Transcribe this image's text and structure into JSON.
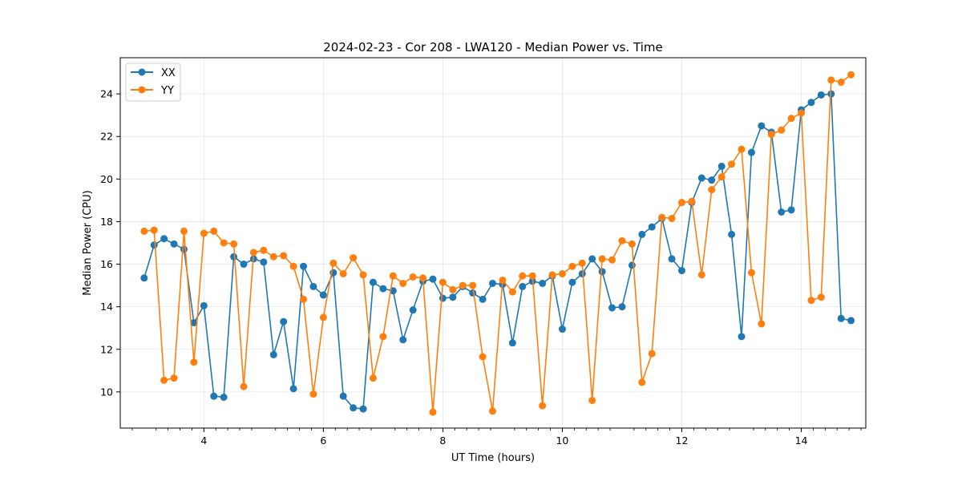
{
  "chart_data": {
    "type": "line",
    "title": "2024-02-23 - Cor 208 - LWA120 - Median Power vs. Time",
    "xlabel": "UT Time (hours)",
    "ylabel": "Median Power (CPU)",
    "xlim": [
      2.6,
      15.08
    ],
    "ylim": [
      8.3,
      25.7
    ],
    "xticks": [
      4,
      6,
      8,
      10,
      12,
      14
    ],
    "xticks_minor": [
      2.8,
      3.2,
      3.4,
      3.6,
      3.8,
      4.2,
      4.4,
      4.6,
      4.8,
      5.2,
      5.4,
      5.6,
      5.8,
      6.2,
      6.4,
      6.6,
      6.8,
      7.2,
      7.4,
      7.6,
      7.8,
      8.2,
      8.4,
      8.6,
      8.8,
      9.2,
      9.4,
      9.6,
      9.8,
      10.2,
      10.4,
      10.6,
      10.8,
      11.2,
      11.4,
      11.6,
      11.8,
      12.2,
      12.4,
      12.6,
      12.8,
      13.2,
      13.4,
      13.6,
      13.8,
      14.2,
      14.4,
      14.6,
      14.8,
      15.0
    ],
    "yticks": [
      10,
      12,
      14,
      16,
      18,
      20,
      22,
      24
    ],
    "grid": true,
    "legend_position": "upper-left",
    "x": [
      3.0,
      3.167,
      3.333,
      3.5,
      3.667,
      3.833,
      4.0,
      4.167,
      4.333,
      4.5,
      4.667,
      4.833,
      5.0,
      5.167,
      5.333,
      5.5,
      5.667,
      5.833,
      6.0,
      6.167,
      6.333,
      6.5,
      6.667,
      6.833,
      7.0,
      7.167,
      7.333,
      7.5,
      7.667,
      7.833,
      8.0,
      8.167,
      8.333,
      8.5,
      8.667,
      8.833,
      9.0,
      9.167,
      9.333,
      9.5,
      9.667,
      9.833,
      10.0,
      10.167,
      10.333,
      10.5,
      10.667,
      10.833,
      11.0,
      11.167,
      11.333,
      11.5,
      11.667,
      11.833,
      12.0,
      12.167,
      12.333,
      12.5,
      12.667,
      12.833,
      13.0,
      13.167,
      13.333,
      13.5,
      13.667,
      13.833,
      14.0,
      14.167,
      14.333,
      14.5,
      14.667,
      14.833
    ],
    "series": [
      {
        "name": "XX",
        "color": "#1f77b4",
        "values": [
          15.35,
          16.9,
          17.2,
          16.95,
          16.7,
          13.25,
          14.05,
          9.8,
          9.75,
          16.35,
          16.0,
          16.25,
          16.1,
          11.75,
          13.3,
          10.15,
          15.9,
          14.95,
          14.55,
          15.6,
          9.8,
          9.25,
          9.2,
          15.15,
          14.85,
          14.75,
          12.45,
          13.85,
          15.2,
          15.3,
          14.4,
          14.45,
          14.95,
          14.65,
          14.35,
          15.1,
          15.05,
          12.3,
          14.95,
          15.2,
          15.1,
          15.45,
          12.95,
          15.15,
          15.55,
          16.25,
          15.65,
          13.95,
          14.0,
          15.95,
          17.4,
          17.75,
          18.15,
          16.25,
          15.7,
          18.9,
          20.05,
          19.95,
          20.6,
          17.4,
          12.6,
          21.25,
          22.5,
          22.2,
          18.45,
          18.55,
          23.25,
          23.6,
          23.95,
          24.0,
          13.45,
          13.35
        ]
      },
      {
        "name": "YY",
        "color": "#ff7f0e",
        "values": [
          17.55,
          17.6,
          10.55,
          10.65,
          17.55,
          11.4,
          17.45,
          17.55,
          17.0,
          16.95,
          10.25,
          16.55,
          16.65,
          16.35,
          16.4,
          15.9,
          14.35,
          9.9,
          13.5,
          16.05,
          15.55,
          16.3,
          15.5,
          10.65,
          12.6,
          15.45,
          15.1,
          15.4,
          15.35,
          9.05,
          15.15,
          14.8,
          15.0,
          15.0,
          11.65,
          9.1,
          15.25,
          14.7,
          15.45,
          15.45,
          9.35,
          15.5,
          15.55,
          15.9,
          16.05,
          9.6,
          16.25,
          16.2,
          17.1,
          16.95,
          10.45,
          11.8,
          18.2,
          18.15,
          18.9,
          18.95,
          15.5,
          19.5,
          20.1,
          20.7,
          21.4,
          15.6,
          13.2,
          22.1,
          22.3,
          22.85,
          23.1,
          14.3,
          14.45,
          24.65,
          24.55,
          24.9
        ]
      }
    ]
  }
}
